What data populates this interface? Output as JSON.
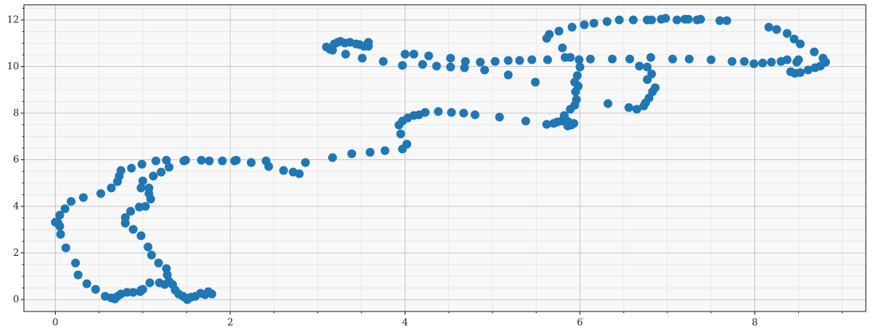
{
  "chart_data": {
    "type": "scatter",
    "color": "#1f77b4",
    "grid": true,
    "xlim": [
      -0.36,
      9.27
    ],
    "ylim": [
      -0.51,
      12.65
    ],
    "xticks": [
      0,
      2,
      4,
      6,
      8
    ],
    "yticks": [
      0,
      2,
      4,
      6,
      8,
      10,
      12
    ],
    "xminorticks": [
      0.5,
      1,
      1.5,
      2.5,
      3,
      3.5,
      4.5,
      5,
      5.5,
      6.5,
      7,
      7.5,
      8.5,
      9
    ],
    "yminorticks": [
      0.5,
      1,
      1.5,
      2.5,
      3,
      3.5,
      4.5,
      5,
      5.5,
      6.5,
      7,
      7.5,
      8.5,
      9,
      9.5,
      10.5,
      11,
      11.5,
      12.5
    ],
    "x": [
      0.57,
      0.64,
      0.68,
      0.71,
      0.75,
      0.82,
      0.89,
      0.97,
      1.0,
      1.08,
      1.19,
      1.25,
      1.3,
      1.34,
      1.37,
      1.41,
      1.46,
      1.49,
      1.51,
      1.55,
      1.6,
      1.66,
      1.71,
      1.75,
      1.79,
      0.46,
      0.36,
      0.26,
      0.23,
      0.12,
      0.06,
      0.05,
      0.03,
      0.0,
      0.05,
      0.11,
      0.18,
      0.32,
      0.52,
      0.64,
      0.71,
      0.73,
      0.75,
      0.87,
      0.99,
      1.15,
      1.27,
      1.3,
      1.21,
      1.12,
      1.0,
      0.98,
      1.07,
      1.07,
      1.09,
      1.03,
      0.96,
      0.86,
      0.8,
      0.8,
      0.89,
      0.98,
      1.06,
      1.1,
      1.18,
      1.27,
      1.28,
      0.98,
      1.47,
      1.49,
      1.67,
      1.76,
      1.91,
      2.05,
      2.07,
      2.24,
      2.41,
      2.44,
      2.61,
      2.72,
      2.79,
      2.86,
      3.17,
      3.39,
      3.6,
      3.77,
      3.97,
      4.02,
      3.95,
      3.93,
      3.97,
      4.03,
      4.1,
      4.16,
      4.23,
      4.38,
      4.53,
      4.67,
      4.8,
      5.08,
      5.38,
      5.62,
      5.7,
      5.74,
      5.79,
      5.83,
      5.87,
      5.9,
      5.86,
      5.93,
      5.82,
      5.89,
      5.94,
      5.96,
      5.95,
      5.98,
      5.94,
      5.97,
      6.0,
      5.99,
      5.89,
      5.83,
      5.8,
      6.12,
      6.37,
      6.57,
      6.68,
      6.77,
      6.82,
      6.77,
      6.86,
      6.83,
      6.79,
      6.75,
      6.73,
      6.65,
      6.56,
      6.32,
      5.62,
      5.65,
      5.76,
      5.91,
      6.05,
      6.16,
      6.31,
      6.45,
      6.61,
      6.77,
      6.82,
      6.93,
      6.98,
      7.11,
      7.2,
      7.24,
      7.34,
      7.38,
      7.6,
      7.68,
      8.16,
      8.25,
      8.37,
      8.45,
      8.52,
      8.68,
      8.78,
      8.81,
      8.75,
      8.69,
      8.61,
      8.52,
      8.46,
      8.41,
      8.48,
      8.5,
      8.37,
      8.3,
      8.19,
      8.09,
      7.99,
      7.88,
      7.74,
      7.5,
      7.25,
      7.06,
      6.81,
      5.63,
      5.45,
      5.31,
      5.18,
      5.03,
      4.86,
      4.69,
      4.52,
      4.27,
      4.1,
      4.0,
      3.97,
      4.2,
      4.36,
      4.52,
      4.68,
      4.91,
      5.18,
      5.49,
      3.1,
      3.14,
      3.17,
      3.19,
      3.23,
      3.26,
      3.31,
      3.37,
      3.44,
      3.48,
      3.53,
      3.58,
      3.58,
      3.32,
      3.51,
      3.75
    ],
    "values": [
      0.14,
      0.07,
      0.03,
      0.14,
      0.24,
      0.31,
      0.31,
      0.34,
      0.44,
      0.72,
      0.72,
      0.65,
      0.79,
      0.65,
      0.41,
      0.24,
      0.14,
      0.07,
      0.0,
      0.1,
      0.14,
      0.27,
      0.21,
      0.34,
      0.24,
      0.44,
      0.68,
      1.06,
      1.57,
      2.22,
      2.8,
      3.15,
      3.28,
      3.32,
      3.62,
      3.9,
      4.21,
      4.38,
      4.55,
      4.79,
      5.06,
      5.3,
      5.54,
      5.64,
      5.81,
      5.95,
      5.98,
      5.68,
      5.47,
      5.3,
      5.09,
      4.79,
      4.55,
      4.79,
      4.31,
      4.0,
      3.97,
      3.79,
      3.52,
      3.28,
      3.01,
      2.74,
      2.26,
      1.91,
      1.57,
      1.33,
      1.06,
      0.41,
      5.95,
      5.98,
      5.98,
      5.95,
      5.95,
      5.95,
      5.98,
      5.88,
      5.95,
      5.71,
      5.54,
      5.47,
      5.4,
      5.88,
      6.09,
      6.26,
      6.32,
      6.39,
      6.46,
      6.67,
      7.11,
      7.49,
      7.66,
      7.79,
      7.9,
      7.93,
      8.03,
      8.07,
      8.03,
      8.0,
      7.93,
      7.83,
      7.66,
      7.52,
      7.56,
      7.62,
      7.66,
      7.76,
      7.62,
      7.49,
      7.45,
      7.56,
      7.9,
      8.17,
      8.34,
      8.58,
      8.92,
      9.16,
      9.33,
      9.61,
      9.98,
      10.29,
      10.39,
      10.39,
      10.8,
      10.32,
      10.32,
      10.32,
      10.02,
      9.98,
      9.68,
      9.44,
      9.09,
      8.92,
      8.65,
      8.44,
      8.31,
      8.17,
      8.24,
      8.41,
      11.21,
      11.38,
      11.52,
      11.69,
      11.79,
      11.86,
      11.93,
      12.0,
      12.0,
      12.0,
      12.0,
      12.03,
      12.07,
      12.0,
      12.03,
      12.03,
      12.0,
      12.03,
      11.97,
      11.97,
      11.69,
      11.59,
      11.42,
      11.18,
      10.97,
      10.63,
      10.36,
      10.19,
      10.02,
      9.95,
      9.85,
      9.74,
      9.71,
      9.78,
      10.19,
      10.29,
      10.29,
      10.22,
      10.19,
      10.15,
      10.12,
      10.22,
      10.22,
      10.29,
      10.32,
      10.32,
      10.39,
      10.29,
      10.29,
      10.26,
      10.26,
      10.22,
      10.19,
      10.22,
      10.36,
      10.46,
      10.53,
      10.53,
      10.05,
      10.09,
      10.02,
      9.98,
      9.95,
      9.85,
      9.64,
      9.33,
      10.84,
      10.74,
      10.7,
      10.97,
      11.04,
      11.08,
      11.01,
      11.04,
      10.97,
      10.94,
      10.87,
      10.87,
      11.04,
      10.53,
      10.36,
      10.22
    ]
  }
}
